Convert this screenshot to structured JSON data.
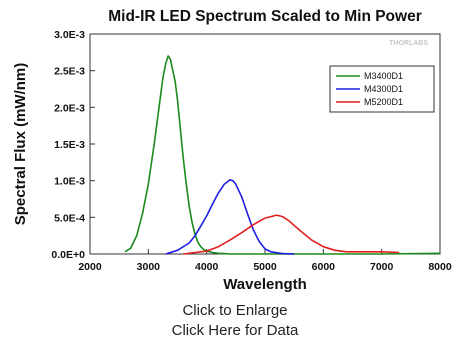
{
  "links": {
    "enlarge": "Click to Enlarge",
    "data": "Click Here for Data"
  },
  "chart_data": {
    "type": "line",
    "title": "Mid-IR LED Spectrum Scaled to Min Power",
    "xlabel": "Wavelength",
    "ylabel": "Spectral Flux (mW/nm)",
    "xlim": [
      2000,
      8000
    ],
    "ylim": [
      0,
      0.003
    ],
    "x_ticks": [
      "2000",
      "3000",
      "4000",
      "5000",
      "6000",
      "7000",
      "8000"
    ],
    "y_ticks": [
      "0.0E+0",
      "5.0E-4",
      "1.0E-3",
      "1.5E-3",
      "2.0E-3",
      "2.5E-3",
      "3.0E-3"
    ],
    "grid": false,
    "legend_position": "top-right",
    "watermark": "THORLABS",
    "series": [
      {
        "name": "M3400D1",
        "color": "#1b8a1b",
        "x": [
          2600,
          2700,
          2800,
          2900,
          3000,
          3100,
          3200,
          3250,
          3300,
          3340,
          3380,
          3420,
          3460,
          3500,
          3550,
          3600,
          3650,
          3700,
          3750,
          3800,
          3850,
          3900,
          3950,
          4000,
          4100,
          4200,
          4300,
          4400,
          5000,
          6000,
          7000,
          8000
        ],
        "y": [
          3e-05,
          8e-05,
          0.00025,
          0.00055,
          0.00095,
          0.0015,
          0.0021,
          0.0024,
          0.0026,
          0.0027,
          0.00265,
          0.0025,
          0.00235,
          0.0021,
          0.0017,
          0.0013,
          0.00095,
          0.00065,
          0.00043,
          0.00027,
          0.00016,
          0.0001,
          6e-05,
          4e-05,
          2e-05,
          1e-05,
          5e-06,
          0.0,
          0.0,
          0.0,
          0.0,
          1e-05
        ]
      },
      {
        "name": "M4300D1",
        "color": "#1f1fe0",
        "x": [
          3300,
          3500,
          3700,
          3800,
          3900,
          4000,
          4100,
          4200,
          4300,
          4400,
          4450,
          4500,
          4600,
          4700,
          4800,
          4900,
          5000,
          5100,
          5300,
          5500
        ],
        "y": [
          0.0,
          5e-05,
          0.00015,
          0.00025,
          0.00038,
          0.00052,
          0.00068,
          0.00083,
          0.00095,
          0.00101,
          0.001,
          0.00095,
          0.00078,
          0.00055,
          0.00033,
          0.00017,
          7e-05,
          3e-05,
          5e-06,
          0.0
        ]
      },
      {
        "name": "M5200D1",
        "color": "#e01f1f",
        "x": [
          3600,
          4000,
          4200,
          4400,
          4600,
          4800,
          5000,
          5200,
          5300,
          5400,
          5600,
          5800,
          6000,
          6200,
          6400,
          6600,
          7000,
          7300
        ],
        "y": [
          0.0,
          4e-05,
          0.0001,
          0.00019,
          0.00029,
          0.0004,
          0.00049,
          0.00053,
          0.00051,
          0.00046,
          0.00032,
          0.00019,
          0.0001,
          5e-05,
          3e-05,
          3e-05,
          3e-05,
          2e-05
        ]
      }
    ]
  }
}
